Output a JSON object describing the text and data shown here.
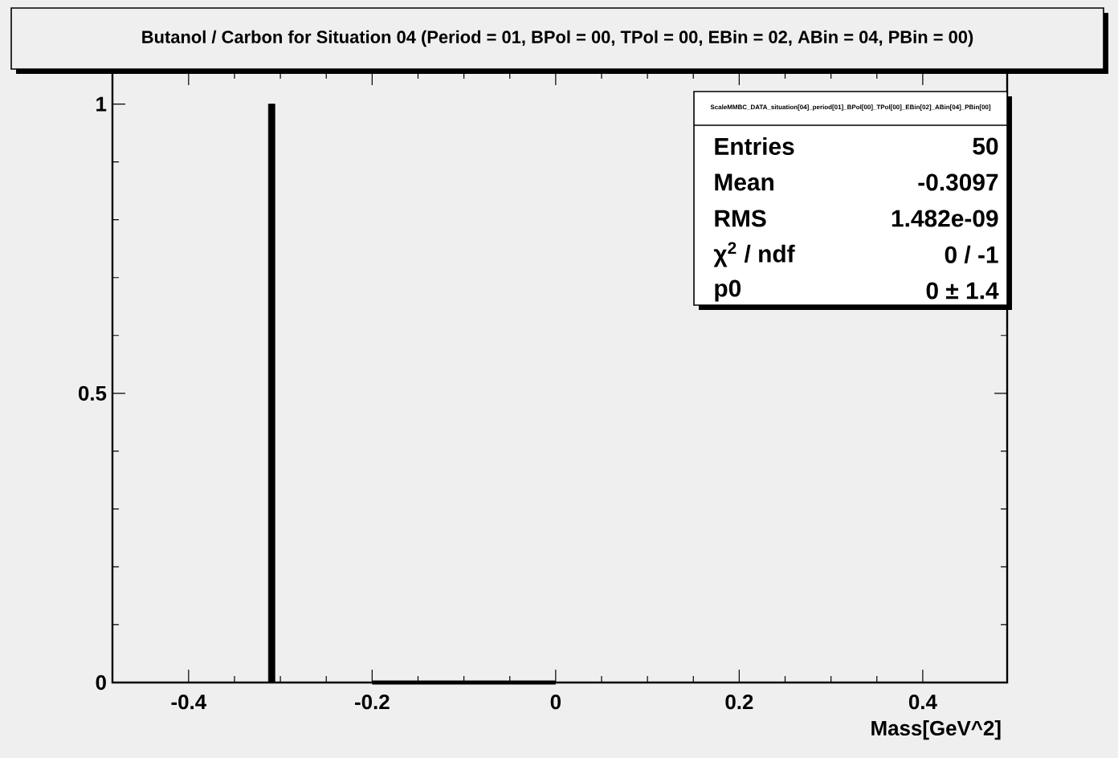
{
  "chart_data": {
    "type": "histogram",
    "title": "Butanol / Carbon for Situation 04 (Period = 01, BPol = 00, TPol = 00, EBin = 02, ABin = 04, PBin = 00)",
    "xlabel": "Mass[GeV^2]",
    "bins": [
      -0.313,
      -0.306
    ],
    "values": [
      1
    ],
    "color": "#000000",
    "series": [
      {
        "type": "line",
        "x": [
          -0.2,
          0
        ],
        "values": [
          0,
          0
        ],
        "color": "#000000"
      }
    ],
    "xlim": [
      -0.483,
      0.492
    ],
    "ylim": [
      0,
      1.055
    ],
    "xticks": [
      -0.4,
      -0.2,
      0,
      0.2,
      0.4
    ],
    "yticks": [
      0,
      0.5,
      1
    ],
    "annotations": [
      "ScaleMMBC_DATA_situation[04]_period[01]_BPol[00]_TPol[00]_EBin[02]_ABin[04]_PBin[00]",
      "Entries",
      "50",
      "Mean",
      "-0.3097",
      "RMS",
      "1.482e-09",
      "χ$^{2}$ / ndf",
      "0 / -1",
      "p0",
      "0 ± 1.4"
    ]
  }
}
